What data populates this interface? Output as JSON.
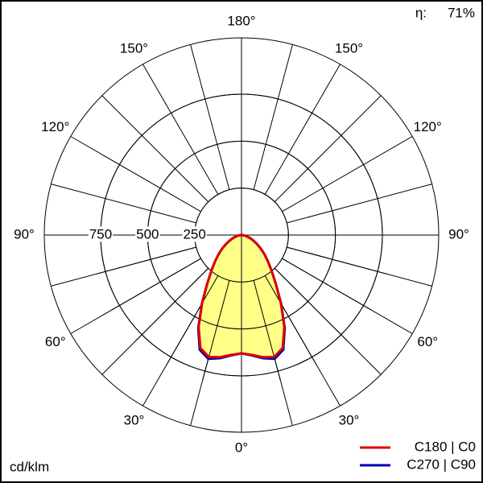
{
  "chart_data": {
    "type": "polar",
    "efficiency_label": "η:",
    "efficiency": "71%",
    "unit": "cd/klm",
    "angles": [
      0,
      5,
      10,
      15,
      20,
      25,
      30,
      35,
      40,
      45,
      50,
      55,
      60,
      65,
      70,
      75,
      80,
      85,
      90
    ],
    "series": [
      {
        "name": "C180 | C0",
        "color": "#e00000",
        "fill": "#ffff88",
        "values": [
          630,
          640,
          660,
          672,
          640,
          540,
          420,
          320,
          250,
          200,
          160,
          125,
          95,
          70,
          50,
          32,
          18,
          8,
          0
        ]
      },
      {
        "name": "C270 | C90",
        "color": "#0000b0",
        "values": [
          630,
          643,
          666,
          682,
          650,
          545,
          422,
          320,
          250,
          200,
          160,
          125,
          95,
          70,
          50,
          32,
          18,
          8,
          0
        ]
      }
    ],
    "rlim": [
      0,
      1050
    ],
    "rticks": [
      250,
      500,
      750
    ],
    "angle_ticks": [
      {
        "value": 0,
        "label": "0°"
      },
      {
        "value": 30,
        "label": "30°"
      },
      {
        "value": 60,
        "label": "60°"
      },
      {
        "value": 90,
        "label": "90°"
      },
      {
        "value": 120,
        "label": "120°"
      },
      {
        "value": 150,
        "label": "150°"
      },
      {
        "value": 180,
        "label": "180°"
      }
    ]
  }
}
